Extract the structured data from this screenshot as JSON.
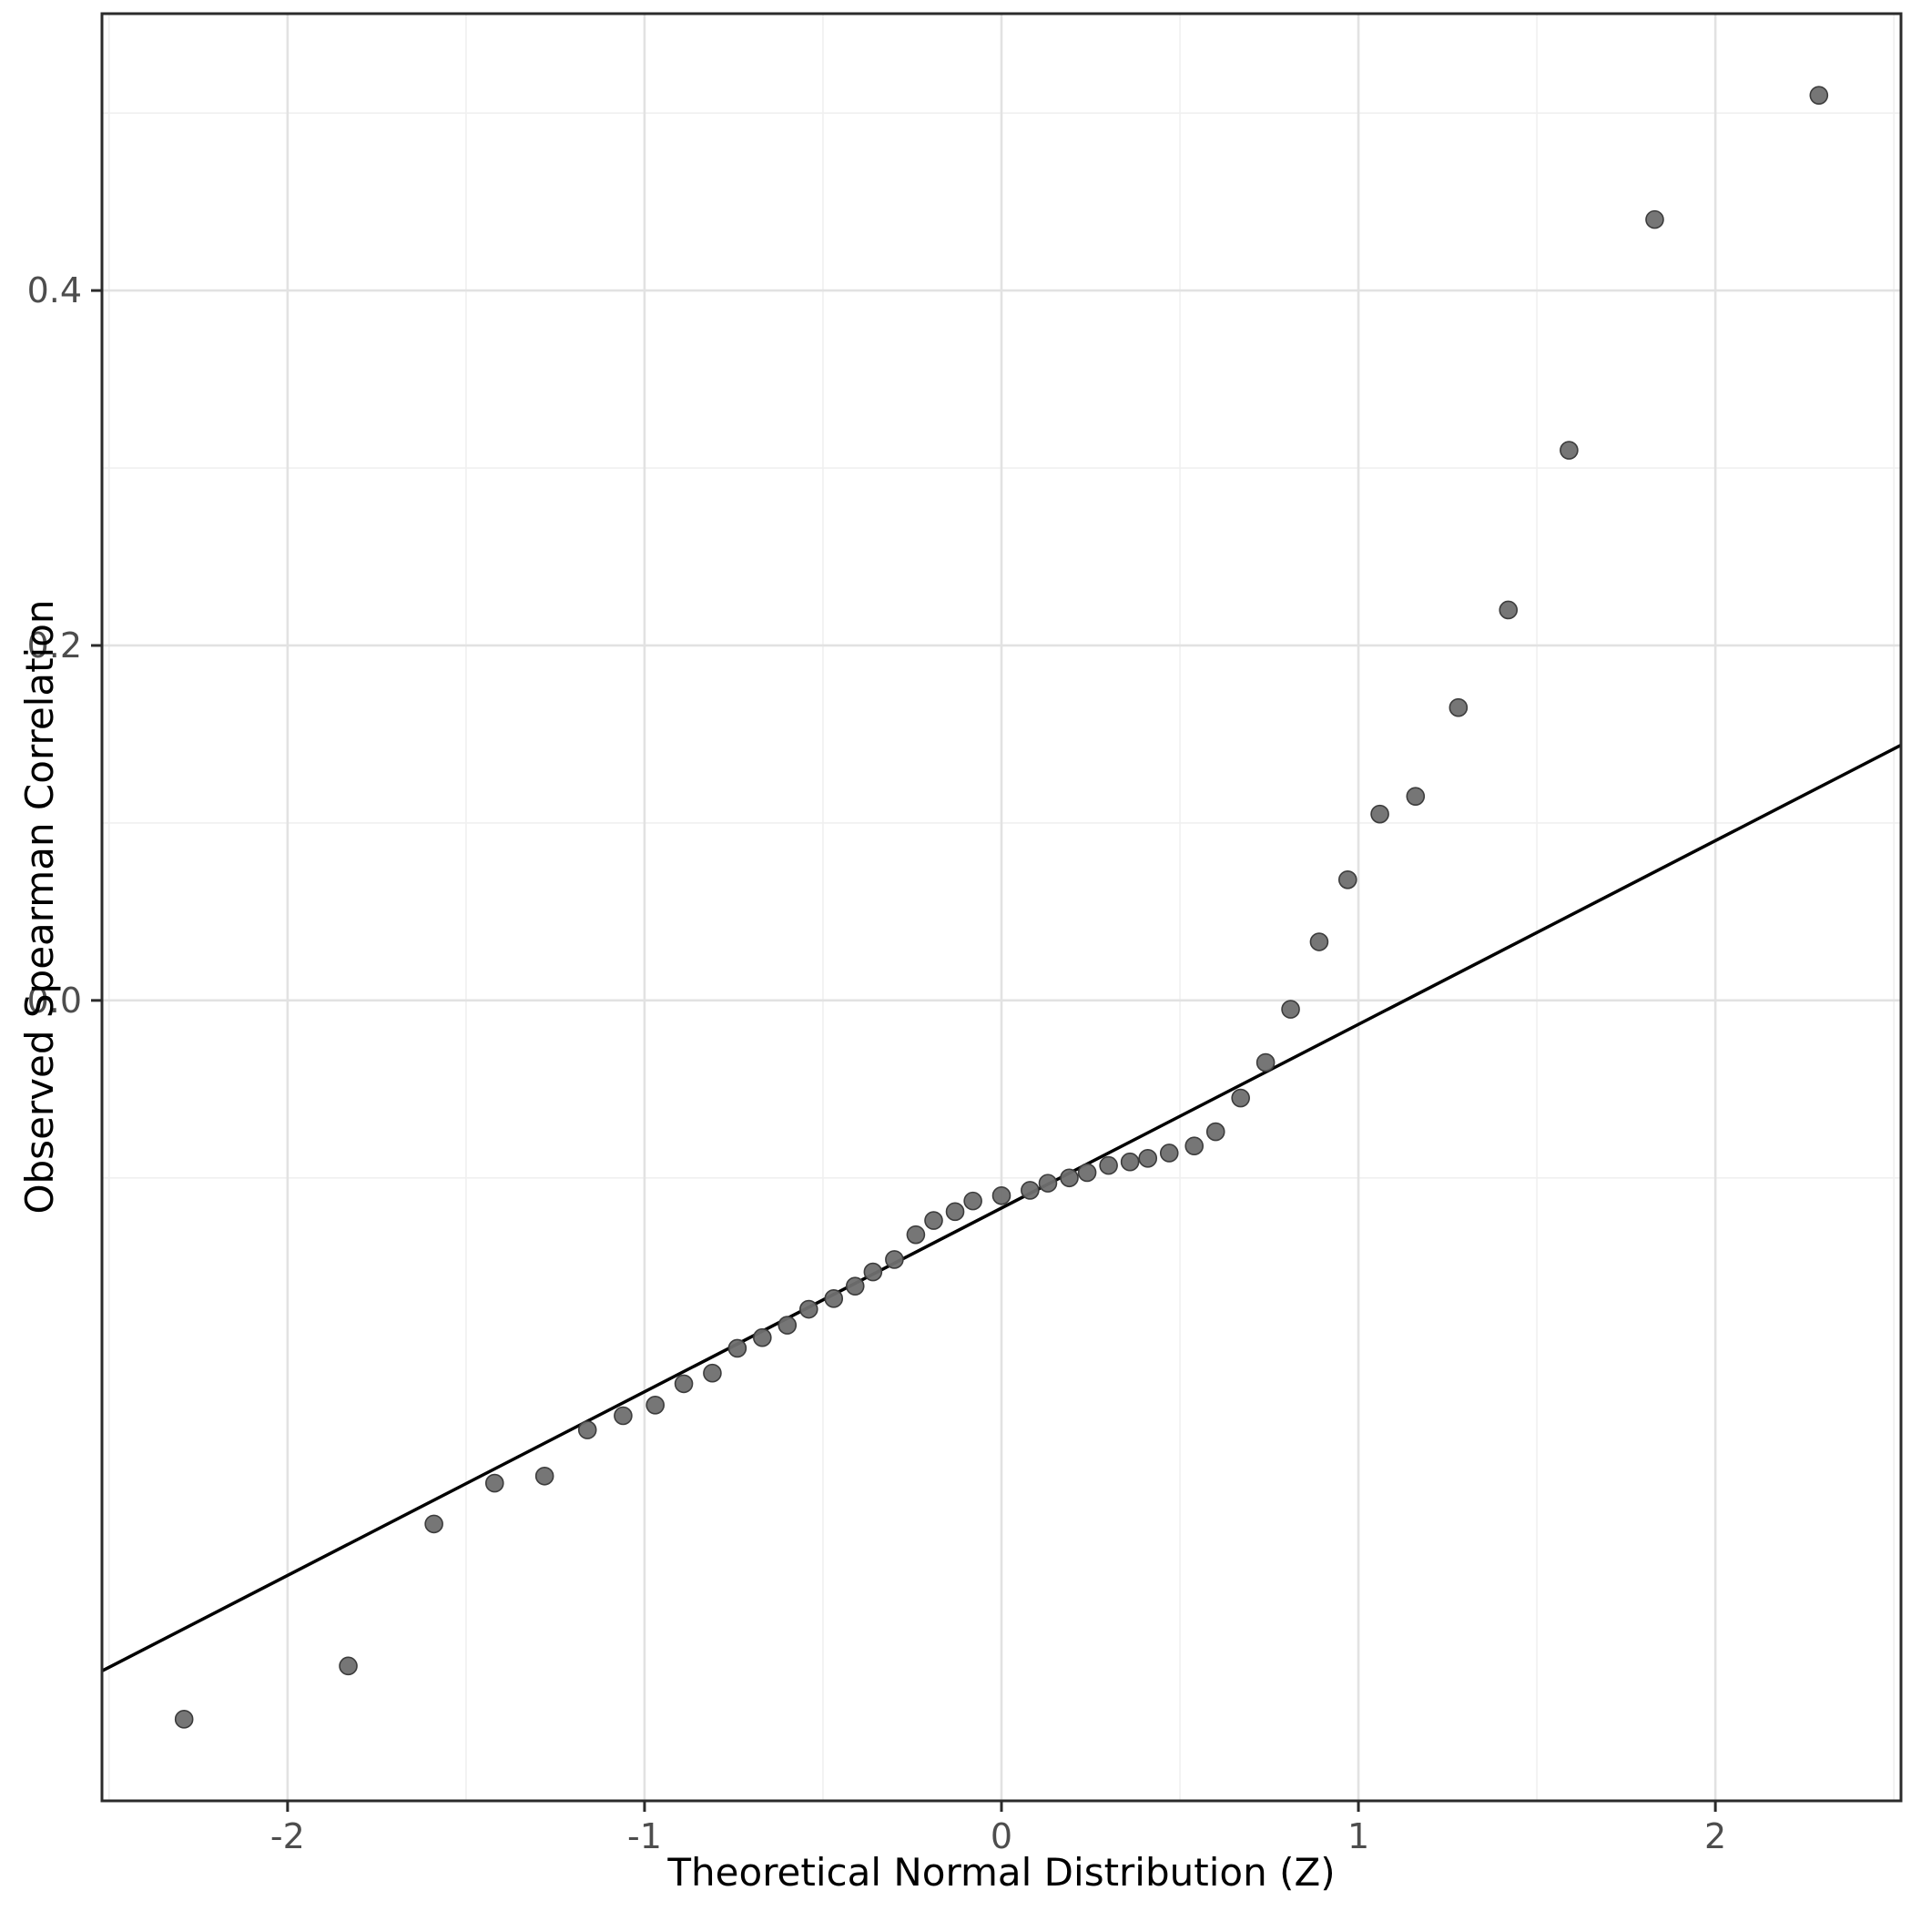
{
  "figure": {
    "background_color": "#FFFFFF",
    "panel_border_color": "#2b2b2b",
    "grid_major_color": "#E2E2E2",
    "grid_minor_color": "#F0F0F0",
    "tick_color": "#2b2b2b",
    "tick_label_color": "#4d4d4d",
    "point_fill": "#6f6f6f",
    "point_stroke": "#3c3c3c",
    "reference_line_color": "#000000"
  },
  "chart_data": {
    "type": "scatter",
    "title": "",
    "xlabel": "Theoretical Normal Distribution (Z)",
    "ylabel": "Observed Spearman Correlation",
    "xlim": [
      -2.52,
      2.52
    ],
    "ylim": [
      -0.451,
      0.556
    ],
    "x_ticks": [
      -2,
      -1,
      0,
      1,
      2
    ],
    "x_tick_labels": [
      "-2",
      "-1",
      "0",
      "1",
      "2"
    ],
    "y_ticks": [
      0.0,
      0.2,
      0.4
    ],
    "y_tick_labels": [
      "0.0",
      "0.2",
      "0.4"
    ],
    "x_minor_gridlines": [
      -2.5,
      -1.5,
      -0.5,
      0.5,
      1.5,
      2.5
    ],
    "y_minor_gridlines": [
      -0.1,
      0.1,
      0.3,
      0.5
    ],
    "grid": true,
    "legend": "none",
    "reference_line": {
      "slope": 0.1035,
      "intercept": -0.117
    },
    "points": {
      "x": [
        -2.29,
        -1.83,
        -1.59,
        -1.42,
        -1.28,
        -1.16,
        -1.06,
        -0.97,
        -0.89,
        -0.81,
        -0.74,
        -0.67,
        -0.6,
        -0.54,
        -0.47,
        -0.41,
        -0.36,
        -0.3,
        -0.24,
        -0.19,
        -0.13,
        -0.08,
        0.0,
        0.08,
        0.13,
        0.19,
        0.24,
        0.3,
        0.36,
        0.41,
        0.47,
        0.54,
        0.6,
        0.67,
        0.74,
        0.81,
        0.89,
        0.97,
        1.06,
        1.16,
        1.28,
        1.42,
        1.59,
        1.83,
        2.29
      ],
      "y": [
        -0.405,
        -0.375,
        -0.295,
        -0.272,
        -0.268,
        -0.242,
        -0.234,
        -0.228,
        -0.216,
        -0.21,
        -0.196,
        -0.19,
        -0.183,
        -0.174,
        -0.168,
        -0.161,
        -0.153,
        -0.146,
        -0.132,
        -0.124,
        -0.119,
        -0.113,
        -0.11,
        -0.107,
        -0.103,
        -0.1,
        -0.097,
        -0.093,
        -0.091,
        -0.089,
        -0.086,
        -0.082,
        -0.074,
        -0.055,
        -0.035,
        -0.005,
        0.033,
        0.068,
        0.105,
        0.115,
        0.165,
        0.22,
        0.31,
        0.44,
        0.51
      ]
    }
  }
}
